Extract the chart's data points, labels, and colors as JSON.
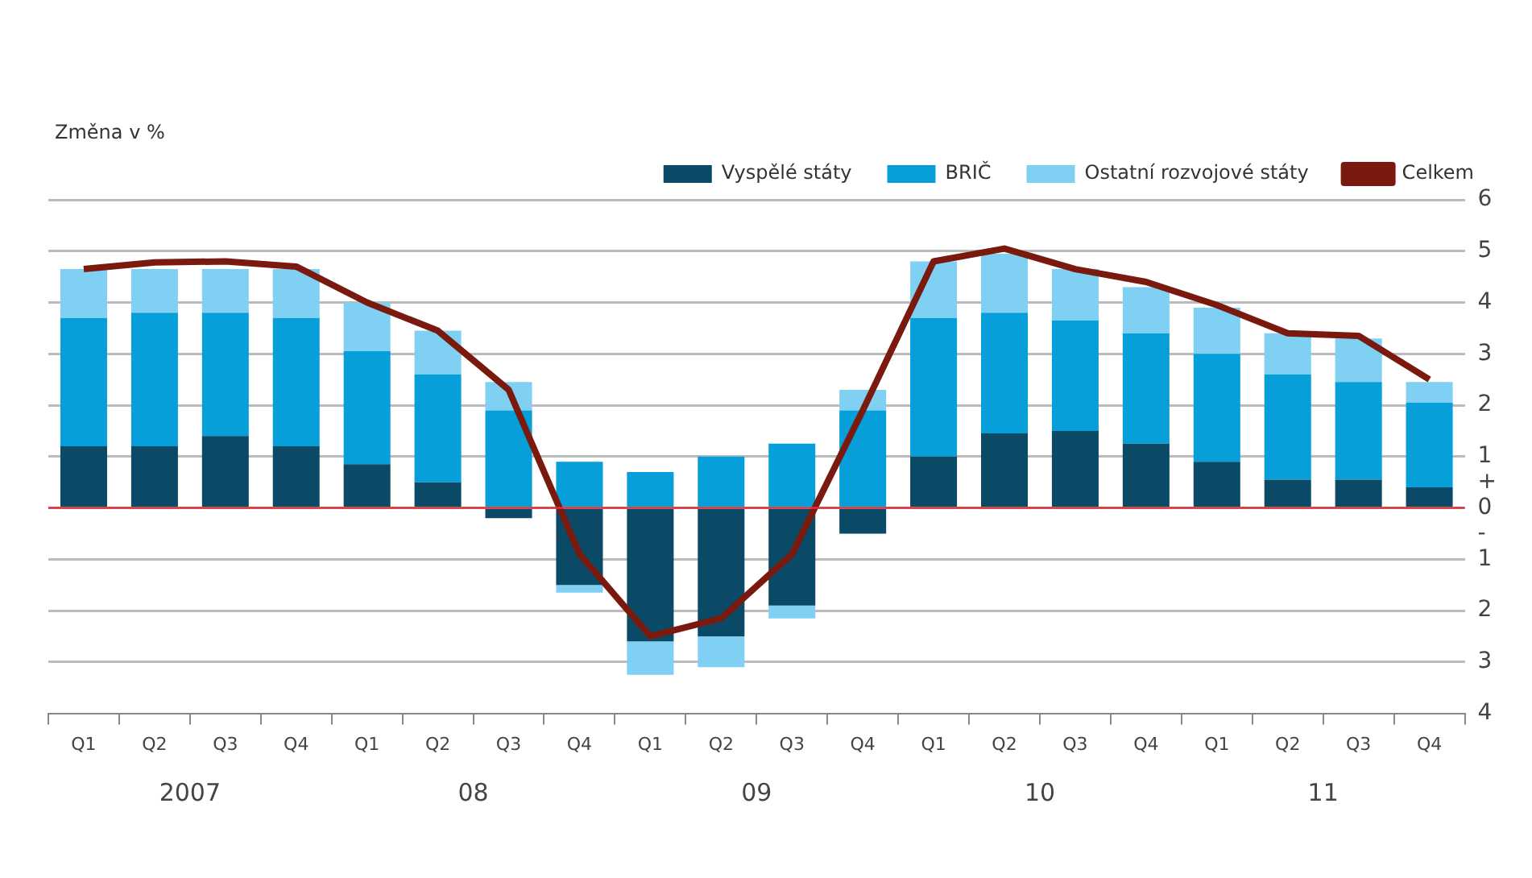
{
  "chart_data": {
    "type": "bar",
    "stacked": true,
    "ylabel": "Změna v %",
    "categories": [
      "Q1",
      "Q2",
      "Q3",
      "Q4",
      "Q1",
      "Q2",
      "Q3",
      "Q4",
      "Q1",
      "Q2",
      "Q3",
      "Q4",
      "Q1",
      "Q2",
      "Q3",
      "Q4",
      "Q1",
      "Q2",
      "Q3",
      "Q4"
    ],
    "annotations": [
      "2007",
      "08",
      "09",
      "10",
      "11"
    ],
    "series": [
      {
        "name": "Vyspělé státy",
        "color": "#0b4a66",
        "values": [
          1.2,
          1.2,
          1.4,
          1.2,
          0.85,
          0.5,
          -0.2,
          -1.5,
          -2.6,
          -2.5,
          -1.9,
          -0.5,
          1.0,
          1.45,
          1.5,
          1.25,
          0.9,
          0.55,
          0.55,
          0.4
        ]
      },
      {
        "name": "BRIČ",
        "color": "#069fd9",
        "values": [
          2.5,
          2.6,
          2.4,
          2.5,
          2.2,
          2.1,
          1.9,
          0.9,
          0.7,
          1.0,
          1.25,
          1.9,
          2.7,
          2.35,
          2.15,
          2.15,
          2.1,
          2.05,
          1.9,
          1.65
        ]
      },
      {
        "name": "Ostatní rozvojové státy",
        "color": "#7fd0f2",
        "values": [
          0.95,
          0.85,
          0.85,
          0.95,
          0.95,
          0.85,
          0.55,
          -0.15,
          -0.65,
          -0.6,
          -0.25,
          0.4,
          1.1,
          1.15,
          1.0,
          0.9,
          0.9,
          0.8,
          0.85,
          0.4
        ]
      },
      {
        "name": "Celkem",
        "type": "line",
        "color": "#7a1a0e",
        "values": [
          4.65,
          4.78,
          4.8,
          4.7,
          4.0,
          3.45,
          2.3,
          -0.9,
          -2.5,
          -2.15,
          -0.9,
          1.9,
          4.8,
          5.05,
          4.65,
          4.4,
          3.95,
          3.4,
          3.35,
          2.5
        ]
      }
    ],
    "ylim": [
      -4,
      6
    ],
    "yticks": [
      {
        "value": -4,
        "label": "4"
      },
      {
        "value": -3,
        "label": "3"
      },
      {
        "value": -2,
        "label": "2"
      },
      {
        "value": -1,
        "label": "1"
      },
      {
        "value": -0.5,
        "label": "-"
      },
      0,
      {
        "value": 0.5,
        "label": "+"
      },
      1,
      2,
      3,
      4,
      5,
      6
    ],
    "ref_lines": [
      {
        "axis": "y",
        "value": 0,
        "color": "#e0303a"
      }
    ],
    "grid": "y",
    "legend": "top right",
    "marker": "none"
  }
}
